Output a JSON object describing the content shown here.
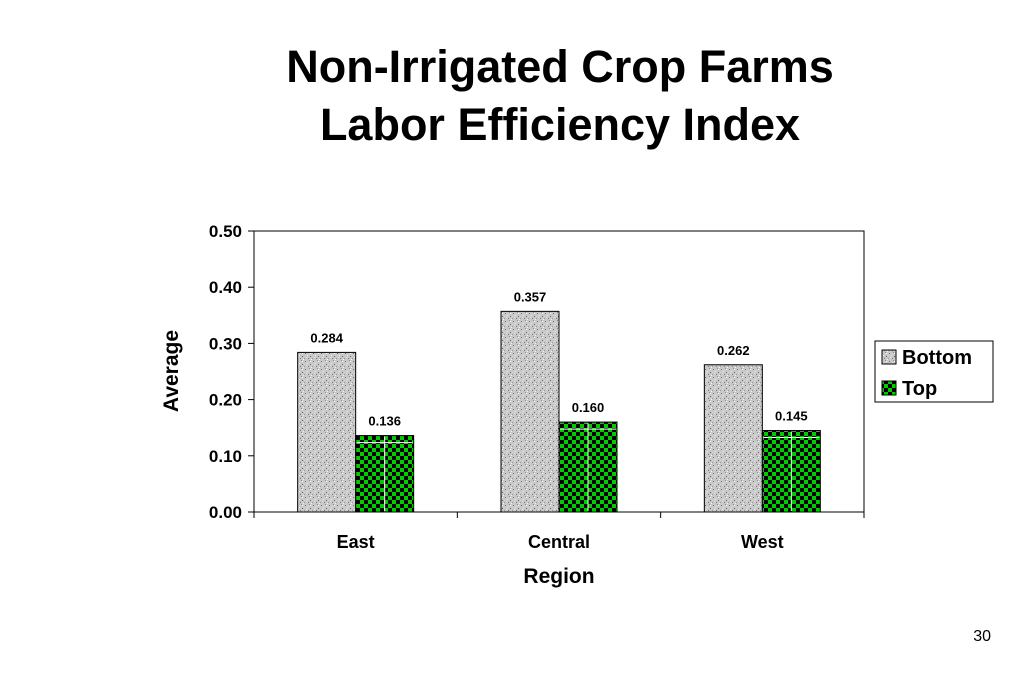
{
  "slide": {
    "title_line1": "Non-Irrigated Crop Farms",
    "title_line2": "Labor Efficiency Index",
    "page_number": "30"
  },
  "chart_data": {
    "type": "bar",
    "categories": [
      "East",
      "Central",
      "West"
    ],
    "series": [
      {
        "name": "Bottom",
        "values": [
          0.284,
          0.357,
          0.262
        ],
        "labels": [
          "0.284",
          "0.357",
          "0.262"
        ],
        "color": "#c8c8c8"
      },
      {
        "name": "Top",
        "values": [
          0.136,
          0.16,
          0.145
        ],
        "labels": [
          "0.136",
          "0.160",
          "0.145"
        ],
        "color": "#00cc00"
      }
    ],
    "xlabel": "Region",
    "ylabel": "Average",
    "ylim": [
      0,
      0.5
    ],
    "yticks": [
      "0.00",
      "0.10",
      "0.20",
      "0.30",
      "0.40",
      "0.50"
    ],
    "legend_position": "right",
    "grid": false
  }
}
